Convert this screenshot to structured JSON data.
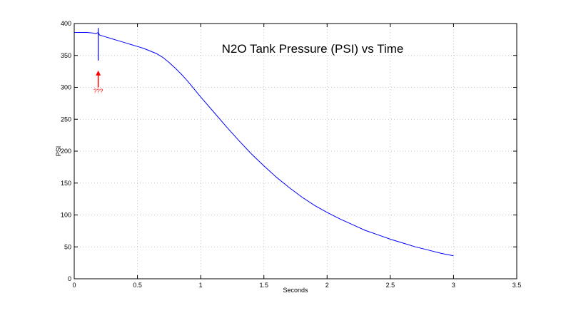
{
  "chart_data": {
    "type": "line",
    "title": "N2O Tank Pressure (PSI) vs Time",
    "xlabel": "Seconds",
    "ylabel": "PSI",
    "xlim": [
      0,
      3.5
    ],
    "ylim": [
      0,
      400
    ],
    "xticks": [
      0,
      0.5,
      1,
      1.5,
      2,
      2.5,
      3,
      3.5
    ],
    "xtick_labels": [
      "0",
      "0.5",
      "1",
      "1.5",
      "2",
      "2.5",
      "3",
      "3.5"
    ],
    "yticks": [
      0,
      50,
      100,
      150,
      200,
      250,
      300,
      350,
      400
    ],
    "ytick_labels": [
      "0",
      "50",
      "100",
      "150",
      "200",
      "250",
      "300",
      "350",
      "400"
    ],
    "grid": true,
    "line_color": "#0000ff",
    "series": [
      {
        "x": [
          0,
          0.05,
          0.1,
          0.15,
          0.17,
          0.19,
          0.2,
          0.25,
          0.3,
          0.35,
          0.4,
          0.45,
          0.5,
          0.55,
          0.6,
          0.65,
          0.7,
          0.75,
          0.8,
          0.85,
          0.9,
          0.95,
          1.0,
          1.1,
          1.2,
          1.3,
          1.4,
          1.5,
          1.6,
          1.7,
          1.8,
          1.9,
          2.0,
          2.1,
          2.2,
          2.3,
          2.4,
          2.5,
          2.6,
          2.7,
          2.8,
          2.9,
          3.0
        ],
        "y": [
          386,
          386,
          386,
          385,
          384,
          386,
          382,
          379,
          376,
          373,
          370,
          367,
          364,
          361,
          357,
          353,
          347,
          339,
          330,
          320,
          309,
          297,
          285,
          262,
          239,
          217,
          196,
          177,
          159,
          143,
          128,
          115,
          104,
          94,
          85,
          76,
          69,
          62,
          56,
          50,
          45,
          40,
          36
        ]
      }
    ],
    "spike": {
      "x": 0.19,
      "y_min": 342,
      "y_max": 393
    },
    "annotation": {
      "text": "???",
      "x": 0.19,
      "y": 310,
      "color": "#ff0000"
    }
  }
}
